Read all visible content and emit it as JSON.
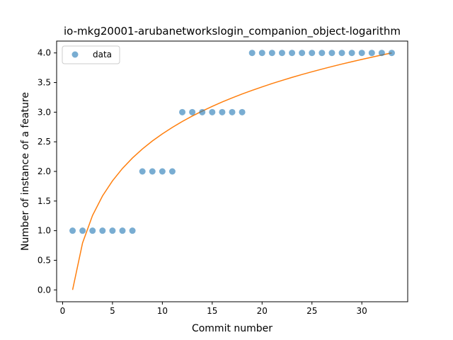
{
  "chart_data": {
    "type": "scatter",
    "title": "io-mkg20001-arubanetworkslogin_companion_object-logarithm",
    "xlabel": "Commit number",
    "ylabel": "Number of instance of a feature",
    "xlim": [
      -0.6,
      34.6
    ],
    "ylim": [
      -0.2,
      4.2
    ],
    "xticks": [
      0,
      5,
      10,
      15,
      20,
      25,
      30
    ],
    "yticks": [
      0.0,
      0.5,
      1.0,
      1.5,
      2.0,
      2.5,
      3.0,
      3.5,
      4.0
    ],
    "xtick_labels": [
      "0",
      "5",
      "10",
      "15",
      "20",
      "25",
      "30"
    ],
    "ytick_labels": [
      "0.0",
      "0.5",
      "1.0",
      "1.5",
      "2.0",
      "2.5",
      "3.0",
      "3.5",
      "4.0"
    ],
    "legend": {
      "position": "top-left",
      "entries": [
        "data"
      ]
    },
    "grid": false,
    "series": [
      {
        "name": "data",
        "kind": "scatter",
        "color": "#1f77b4",
        "x": [
          1,
          2,
          3,
          4,
          5,
          6,
          7,
          8,
          9,
          10,
          11,
          12,
          13,
          14,
          15,
          16,
          17,
          18,
          19,
          20,
          21,
          22,
          23,
          24,
          25,
          26,
          27,
          28,
          29,
          30,
          31,
          32,
          33
        ],
        "y": [
          1,
          1,
          1,
          1,
          1,
          1,
          1,
          2,
          2,
          2,
          2,
          3,
          3,
          3,
          3,
          3,
          3,
          3,
          4,
          4,
          4,
          4,
          4,
          4,
          4,
          4,
          4,
          4,
          4,
          4,
          4,
          4,
          4
        ]
      },
      {
        "kind": "line",
        "color": "#ff7f0e",
        "model": "y = 1.144 * ln(x)",
        "x": [
          1,
          2,
          3,
          4,
          5,
          6,
          7,
          8,
          9,
          10,
          11,
          12,
          13,
          14,
          15,
          16,
          17,
          18,
          19,
          20,
          21,
          22,
          23,
          24,
          25,
          26,
          27,
          28,
          29,
          30,
          31,
          32,
          33
        ],
        "y": [
          0.0,
          0.793,
          1.257,
          1.586,
          1.841,
          2.05,
          2.226,
          2.379,
          2.514,
          2.634,
          2.743,
          2.843,
          2.935,
          3.019,
          3.098,
          3.172,
          3.241,
          3.307,
          3.368,
          3.427,
          3.483,
          3.536,
          3.587,
          3.636,
          3.682,
          3.727,
          3.77,
          3.812,
          3.852,
          3.891,
          3.928,
          3.965,
          4.0
        ]
      }
    ]
  }
}
